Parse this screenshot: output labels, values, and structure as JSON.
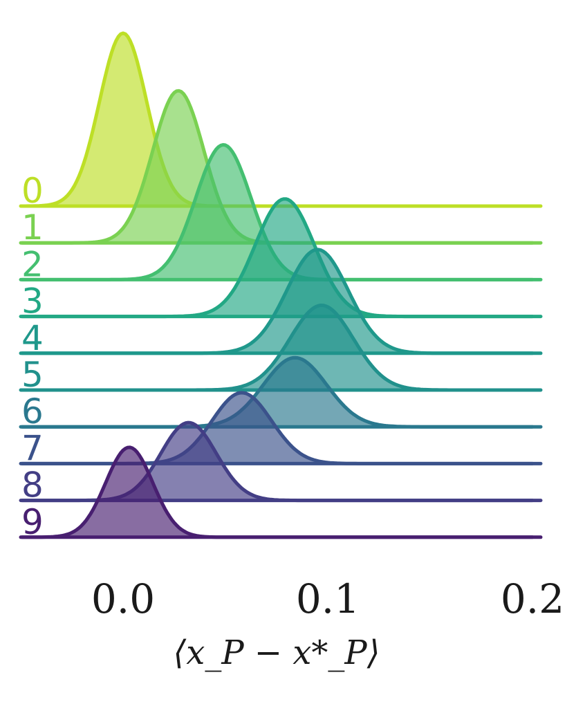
{
  "chart_data": {
    "type": "area",
    "subtype": "ridgeline",
    "title": "",
    "xlabel": "⟨x_P − x*_P⟩",
    "ylabel": "",
    "xlim": [
      -0.05,
      0.2
    ],
    "xticks": [
      0.0,
      0.1,
      0.2
    ],
    "xtick_labels": [
      "0.0",
      "0.1",
      "0.2"
    ],
    "grid": false,
    "legend": "none",
    "row_labels_position": "left",
    "series": [
      {
        "name": "0",
        "color": "#bddf26",
        "mean": 0.0,
        "std": 0.0115,
        "peak": 1.0
      },
      {
        "name": "1",
        "color": "#7ad151",
        "mean": 0.027,
        "std": 0.0125,
        "peak": 0.88
      },
      {
        "name": "2",
        "color": "#44bf70",
        "mean": 0.049,
        "std": 0.0135,
        "peak": 0.78
      },
      {
        "name": "3",
        "color": "#22a884",
        "mean": 0.079,
        "std": 0.0145,
        "peak": 0.68
      },
      {
        "name": "4",
        "color": "#1f988b",
        "mean": 0.095,
        "std": 0.015,
        "peak": 0.6
      },
      {
        "name": "5",
        "color": "#21918c",
        "mean": 0.097,
        "std": 0.0155,
        "peak": 0.49
      },
      {
        "name": "6",
        "color": "#2a788e",
        "mean": 0.084,
        "std": 0.0155,
        "peak": 0.4
      },
      {
        "name": "7",
        "color": "#3b528b",
        "mean": 0.058,
        "std": 0.0145,
        "peak": 0.41
      },
      {
        "name": "8",
        "color": "#433e85",
        "mean": 0.032,
        "std": 0.0135,
        "peak": 0.45
      },
      {
        "name": "9",
        "color": "#481f70",
        "mean": 0.003,
        "std": 0.0115,
        "peak": 0.52
      }
    ]
  }
}
